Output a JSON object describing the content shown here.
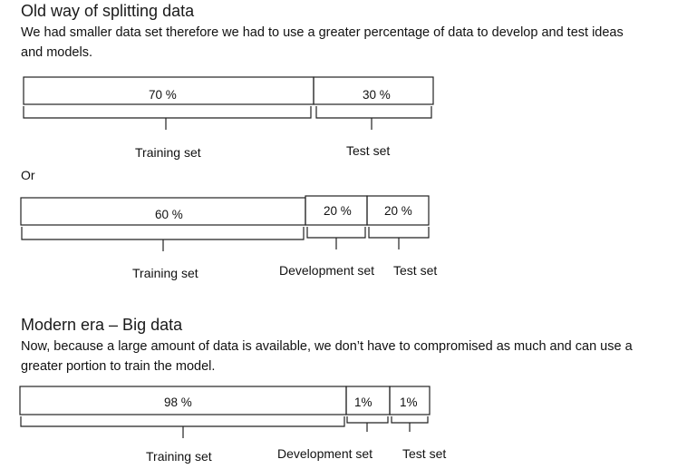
{
  "old_section": {
    "heading": "Old way of splitting data",
    "description_line1": "We had smaller data set therefore we had to use a greater percentage of data to develop and test ideas",
    "description_line2": "and models."
  },
  "split_a": {
    "seg1": "70 %",
    "seg2": "30 %",
    "label1": "Training set",
    "label2": "Test set"
  },
  "or_label": "Or",
  "split_b": {
    "seg1": "60 %",
    "seg2": "20 %",
    "seg3": "20 %",
    "label1": "Training set",
    "label2": "Development set",
    "label3": "Test set"
  },
  "modern_section": {
    "heading": "Modern era – Big data",
    "description_line1": "Now, because a large amount of data is available, we don’t have to compromised as much and can use a",
    "description_line2": "greater portion to train the model."
  },
  "split_c": {
    "seg1": "98 %",
    "seg2": "1%",
    "seg3": "1%",
    "label1": "Training set",
    "label2": "Development set",
    "label3": "Test set"
  }
}
